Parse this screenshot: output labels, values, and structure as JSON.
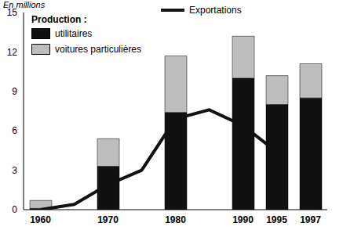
{
  "chart_data": {
    "type": "bar",
    "y_label": "En millions",
    "legend_title": "Production :",
    "categories": [
      "1960",
      null,
      "1970",
      null,
      "1980",
      null,
      "1990",
      "1995",
      "1997"
    ],
    "series": [
      {
        "name": "utilitaires",
        "type": "bar",
        "color": "#111111",
        "values": [
          0.1,
          null,
          3.3,
          null,
          7.4,
          null,
          10.0,
          8.0,
          8.5
        ]
      },
      {
        "name": "voitures particulières",
        "type": "bar",
        "color": "#bdbdbd",
        "values": [
          0.6,
          null,
          2.1,
          null,
          4.3,
          null,
          3.2,
          2.2,
          2.6
        ]
      },
      {
        "name": "Exportations",
        "type": "line",
        "color": "#111111",
        "values": [
          0,
          0.4,
          1.9,
          3.0,
          6.9,
          7.6,
          6.4,
          4.4,
          null
        ]
      }
    ],
    "stacked": true,
    "ylim": [
      0,
      15
    ],
    "yticks": [
      0,
      3,
      6,
      9,
      12,
      15
    ],
    "grid": false,
    "legend": "top-left"
  }
}
